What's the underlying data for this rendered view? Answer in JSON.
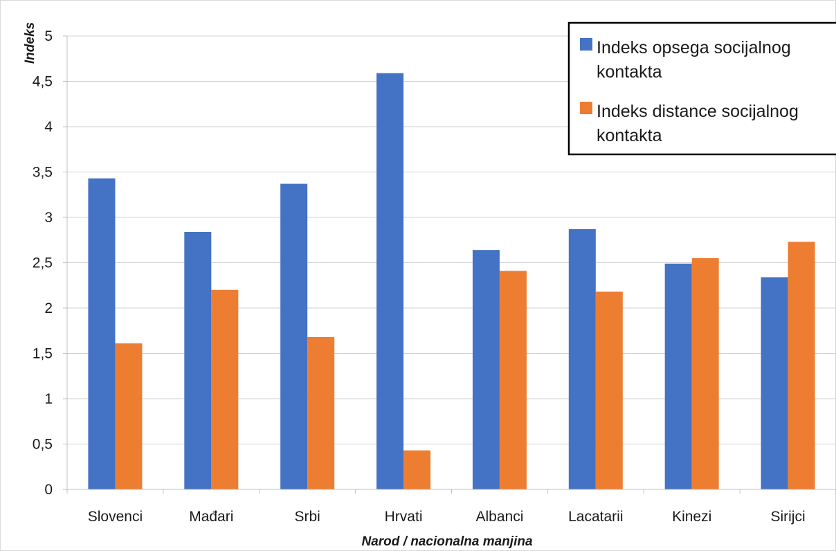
{
  "chart_data": {
    "type": "bar",
    "categories": [
      "Slovenci",
      "Mađari",
      "Srbi",
      "Hrvati",
      "Albanci",
      "Lacatarii",
      "Kinezi",
      "Sirijci"
    ],
    "series": [
      {
        "name": "Indeks opsega socijalnog kontakta",
        "legend_lines": [
          "Indeks opsega socijalnog",
          "kontakta"
        ],
        "color": "#4472C4",
        "values": [
          3.43,
          2.84,
          3.37,
          4.59,
          2.64,
          2.87,
          2.49,
          2.34
        ]
      },
      {
        "name": "Indeks distance socijalnog kontakta",
        "legend_lines": [
          "Indeks distance socijalnog",
          "kontakta"
        ],
        "color": "#ED7D31",
        "values": [
          1.61,
          2.2,
          1.68,
          0.43,
          2.41,
          2.18,
          2.55,
          2.73
        ]
      }
    ],
    "ylim": [
      0,
      5
    ],
    "yticks": [
      0,
      0.5,
      1,
      1.5,
      2,
      2.5,
      3,
      3.5,
      4,
      4.5,
      5
    ],
    "ytick_labels": [
      "0",
      "0,5",
      "1",
      "1,5",
      "2",
      "2,5",
      "3",
      "3,5",
      "4",
      "4,5",
      "5"
    ],
    "xlabel": "Narod / nacionalna manjina",
    "ylabel": "Indeks",
    "grid": true,
    "legend_position": "top-right"
  }
}
